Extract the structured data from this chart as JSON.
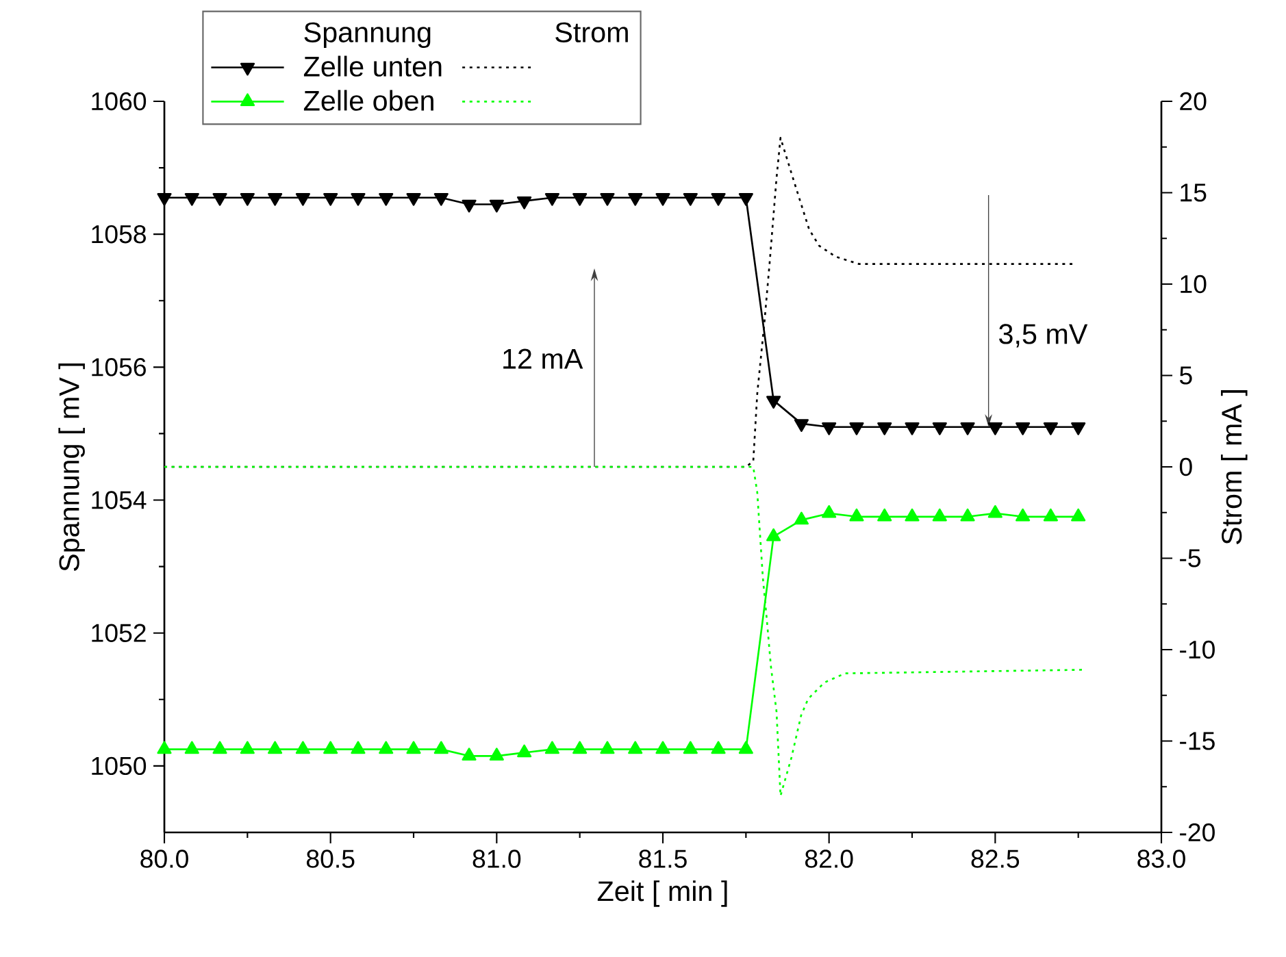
{
  "chart_data": {
    "type": "line",
    "xlabel": "Zeit [ min ]",
    "ylabel": "Spannung [ mV ]",
    "y2label": "Strom [ mA ]",
    "legend_title": "Spannung",
    "legend": "top left",
    "xlim": [
      80,
      83
    ],
    "xticks": [
      {
        "value": 80,
        "label": "80.0"
      },
      {
        "value": 80.5,
        "label": "80.5"
      },
      {
        "value": 81,
        "label": "81.0"
      },
      {
        "value": 81.5,
        "label": "81.5"
      },
      {
        "value": 82,
        "label": "82.0"
      },
      {
        "value": 82.5,
        "label": "82.5"
      },
      {
        "value": 83,
        "label": "83.0"
      }
    ],
    "ylim": [
      1049,
      1060
    ],
    "yticks": [
      1050,
      1052,
      1054,
      1056,
      1058,
      1060
    ],
    "y2lim": [
      -20,
      20
    ],
    "y2ticks": [
      -20,
      -15,
      -10,
      -5,
      0,
      5,
      10,
      15,
      20
    ],
    "series": [
      {
        "name": "Zelle unten",
        "color": "#000000",
        "marker": "triangle",
        "line_style": "solid",
        "x": [
          80,
          80.083,
          80.167,
          80.25,
          80.333,
          80.417,
          80.5,
          80.583,
          80.667,
          80.75,
          80.833,
          80.917,
          81,
          81.083,
          81.167,
          81.25,
          81.333,
          81.417,
          81.5,
          81.583,
          81.667,
          81.75,
          81.833,
          81.917,
          82,
          82.083,
          82.167,
          82.25,
          82.333,
          82.417,
          82.5,
          82.583,
          82.667,
          82.75
        ],
        "values": [
          1058.55,
          1058.55,
          1058.55,
          1058.55,
          1058.55,
          1058.55,
          1058.55,
          1058.55,
          1058.55,
          1058.55,
          1058.55,
          1058.45,
          1058.45,
          1058.5,
          1058.55,
          1058.55,
          1058.55,
          1058.55,
          1058.55,
          1058.55,
          1058.55,
          1058.55,
          1055.5,
          1055.15,
          1055.1,
          1055.1,
          1055.1,
          1055.1,
          1055.1,
          1055.1,
          1055.1,
          1055.1,
          1055.1,
          1055.1
        ]
      },
      {
        "name": "Zelle oben",
        "color": "#00ff00",
        "marker": "triangle",
        "line_style": "solid",
        "x": [
          80,
          80.083,
          80.167,
          80.25,
          80.333,
          80.417,
          80.5,
          80.583,
          80.667,
          80.75,
          80.833,
          80.917,
          81,
          81.083,
          81.167,
          81.25,
          81.333,
          81.417,
          81.5,
          81.583,
          81.667,
          81.75,
          81.833,
          81.917,
          82,
          82.083,
          82.167,
          82.25,
          82.333,
          82.417,
          82.5,
          82.583,
          82.667,
          82.75
        ],
        "values": [
          1050.25,
          1050.25,
          1050.25,
          1050.25,
          1050.25,
          1050.25,
          1050.25,
          1050.25,
          1050.25,
          1050.25,
          1050.25,
          1050.15,
          1050.15,
          1050.2,
          1050.25,
          1050.25,
          1050.25,
          1050.25,
          1050.25,
          1050.25,
          1050.25,
          1050.25,
          1053.45,
          1053.7,
          1053.8,
          1053.75,
          1053.75,
          1053.75,
          1053.75,
          1053.75,
          1053.8,
          1053.75,
          1053.75,
          1053.75
        ]
      },
      {
        "color": "#000000",
        "axis": "y2",
        "marker": "none",
        "line_style": "dotted",
        "x": [
          80,
          81.75,
          81.772,
          81.784,
          81.805,
          81.821,
          81.842,
          81.854,
          81.9,
          81.94,
          81.97,
          82.02,
          82.09,
          82.74
        ],
        "values": [
          0,
          0,
          0.3,
          4,
          7.8,
          11.1,
          15.8,
          18,
          15.3,
          13,
          12.1,
          11.5,
          11.1,
          11.1
        ]
      },
      {
        "color": "#00ff00",
        "axis": "y2",
        "marker": "none",
        "line_style": "dotted",
        "x": [
          80,
          81.772,
          81.784,
          81.801,
          81.813,
          81.825,
          81.842,
          81.854,
          81.887,
          81.916,
          81.937,
          81.986,
          82.048,
          82.773
        ],
        "values": [
          0,
          0,
          -1.4,
          -6.1,
          -8.4,
          -10.9,
          -13.4,
          -18,
          -15.9,
          -13.6,
          -12.7,
          -11.8,
          -11.3,
          -11.1
        ]
      }
    ],
    "annotations": [
      "12 mA",
      {
        "text": "3,5 mV",
        "x": 82.48,
        "y": 1055.1
      },
      "Strom"
    ]
  }
}
